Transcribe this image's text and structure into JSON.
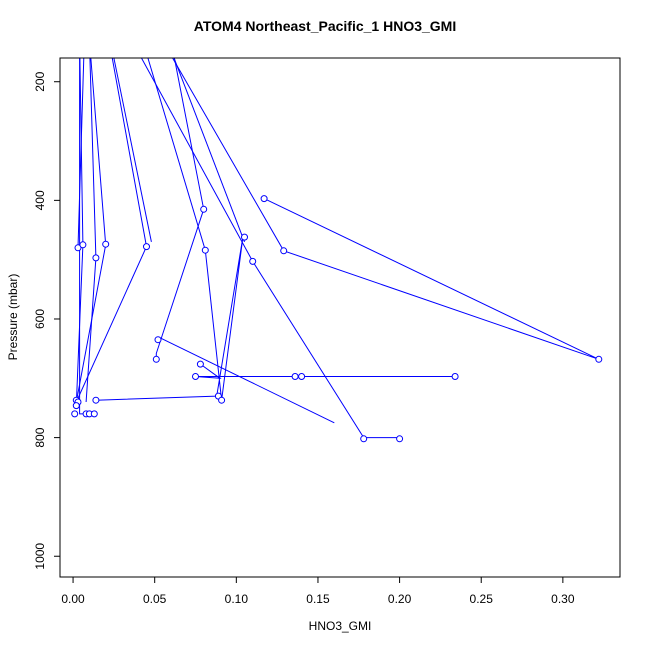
{
  "chart_data": {
    "type": "line",
    "title": "ATOM4 Northeast_Pacific_1 HNO3_GMI",
    "xlabel": "HNO3_GMI",
    "ylabel": "Pressure (mbar)",
    "xlim": [
      -0.008,
      0.335
    ],
    "ylim": [
      1035,
      160
    ],
    "y_reversed": true,
    "xticks": [
      0.0,
      0.05,
      0.1,
      0.15,
      0.2,
      0.25,
      0.3
    ],
    "xtick_labels": [
      "0.00",
      "0.05",
      "0.10",
      "0.15",
      "0.20",
      "0.25",
      "0.30"
    ],
    "yticks": [
      200,
      400,
      600,
      800,
      1000
    ],
    "ytick_labels": [
      "200",
      "400",
      "600",
      "800",
      "1000"
    ],
    "series_color": "#0000ff",
    "marker": "open-circle",
    "segments": [
      [
        [
          0.004,
          95
        ],
        [
          0.004,
          760
        ],
        [
          0.01,
          760
        ]
      ],
      [
        [
          0.007,
          120
        ],
        [
          0.003,
          480
        ]
      ],
      [
        [
          0.022,
          130
        ],
        [
          0.045,
          478
        ],
        [
          0.002,
          740
        ]
      ],
      [
        [
          0.004,
          130
        ],
        [
          0.006,
          475
        ],
        [
          0.002,
          745
        ]
      ],
      [
        [
          0.01,
          130
        ],
        [
          0.02,
          475
        ],
        [
          0.002,
          740
        ]
      ],
      [
        [
          0.01,
          130
        ],
        [
          0.014,
          497
        ],
        [
          0.008,
          740
        ]
      ],
      [
        [
          0.035,
          60
        ],
        [
          0.081,
          484
        ],
        [
          0.091,
          737
        ],
        [
          0.104,
          462
        ],
        [
          0.088,
          730
        ],
        [
          0.014,
          737
        ]
      ],
      [
        [
          0.055,
          60
        ],
        [
          0.08,
          415
        ],
        [
          0.051,
          658
        ],
        [
          0.051,
          668
        ]
      ],
      [
        [
          0.03,
          100
        ],
        [
          0.11,
          503
        ],
        [
          0.178,
          800
        ],
        [
          0.2,
          800
        ]
      ],
      [
        [
          0.04,
          60
        ],
        [
          0.129,
          485
        ],
        [
          0.322,
          668
        ],
        [
          0.117,
          397
        ]
      ],
      [
        [
          0.052,
          630
        ],
        [
          0.16,
          775
        ]
      ],
      [
        [
          0.01,
          760
        ],
        [
          0.012,
          760
        ]
      ],
      [
        [
          0.078,
          676
        ],
        [
          0.09,
          700
        ],
        [
          0.075,
          697
        ],
        [
          0.234,
          697
        ]
      ],
      [
        [
          0.136,
          697
        ],
        [
          0.14,
          697
        ]
      ],
      [
        [
          0.05,
          75
        ],
        [
          0.105,
          470
        ]
      ],
      [
        [
          0.018,
          65
        ],
        [
          0.048,
          470
        ]
      ]
    ],
    "points": [
      [
        0.117,
        397
      ],
      [
        0.08,
        415
      ],
      [
        0.105,
        462
      ],
      [
        0.045,
        478
      ],
      [
        0.003,
        480
      ],
      [
        0.006,
        475
      ],
      [
        0.02,
        474
      ],
      [
        0.081,
        484
      ],
      [
        0.129,
        485
      ],
      [
        0.014,
        497
      ],
      [
        0.11,
        503
      ],
      [
        0.052,
        635
      ],
      [
        0.051,
        668
      ],
      [
        0.322,
        668
      ],
      [
        0.078,
        676
      ],
      [
        0.075,
        697
      ],
      [
        0.136,
        697
      ],
      [
        0.14,
        697
      ],
      [
        0.234,
        697
      ],
      [
        0.089,
        730
      ],
      [
        0.091,
        737
      ],
      [
        0.014,
        737
      ],
      [
        0.002,
        737
      ],
      [
        0.003,
        740
      ],
      [
        0.002,
        746
      ],
      [
        0.001,
        760
      ],
      [
        0.008,
        760
      ],
      [
        0.01,
        760
      ],
      [
        0.013,
        760
      ],
      [
        0.178,
        802
      ],
      [
        0.2,
        802
      ]
    ]
  }
}
